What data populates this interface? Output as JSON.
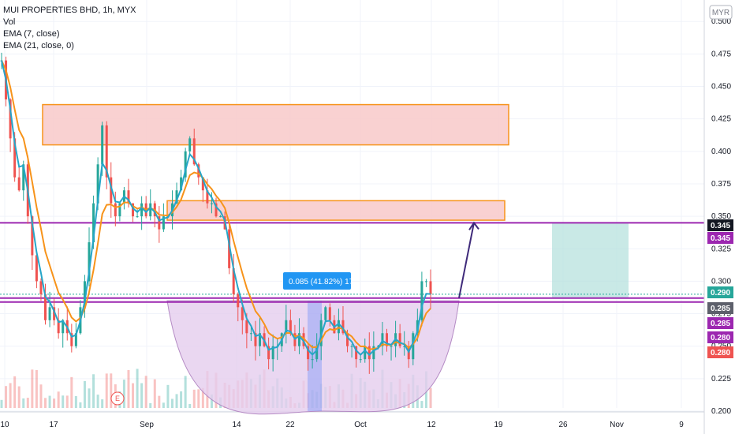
{
  "header": {
    "title": "MUI PROPERTIES BHD, 1h, MYX",
    "indicators": [
      "Vol",
      "EMA (7, close)",
      "EMA (21, close, 0)"
    ]
  },
  "currency_badge": "MYR",
  "measure_label": "0.085 (41.82%) 17",
  "colors": {
    "candle_up": "#26a69a",
    "candle_down": "#ef5350",
    "ema7": "#26a6c9",
    "ema21": "#f7931a",
    "resistance_zone": "#f8c9c9",
    "zone_border": "#f7931a",
    "purple_line": "#9c27b0",
    "cup_fill": "#e5cdee",
    "target_box": "#b2dfdb",
    "measure_box": "#2962ff"
  },
  "chart_data": {
    "type": "candlestick",
    "symbol": "MUI PROPERTIES BHD",
    "interval": "1h",
    "exchange": "MYX",
    "ylim": [
      0.2,
      0.505
    ],
    "y_ticks": [
      "0.500",
      "0.475",
      "0.450",
      "0.425",
      "0.400",
      "0.375",
      "0.350",
      "0.325",
      "0.300",
      "0.275",
      "0.250",
      "0.225",
      "0.200"
    ],
    "x_ticks": [
      "10",
      "17",
      "Sep",
      "14",
      "22",
      "Oct",
      "12",
      "19",
      "26",
      "Nov",
      "9"
    ],
    "price_levels": [
      {
        "label": "0.345",
        "value": 0.345,
        "color": "#131722",
        "text_color": "#ffffff"
      },
      {
        "label": "0.345",
        "value": 0.345,
        "color": "#9c27b0",
        "text_color": "#ffffff"
      },
      {
        "label": "0.290",
        "value": 0.29,
        "color": "#26a69a",
        "text_color": "#ffffff"
      },
      {
        "label": "0.285",
        "value": 0.285,
        "color": "#5d606b",
        "text_color": "#ffffff"
      },
      {
        "label": "0.285",
        "value": 0.285,
        "color": "#9c27b0",
        "text_color": "#ffffff"
      },
      {
        "label": "0.280",
        "value": 0.28,
        "color": "#9c27b0",
        "text_color": "#ffffff"
      },
      {
        "label": "0.280",
        "value": 0.28,
        "color": "#ef5350",
        "text_color": "#ffffff"
      }
    ],
    "zones": [
      {
        "name": "resistance-upper",
        "y_low": 0.405,
        "y_high": 0.436
      },
      {
        "name": "resistance-lower",
        "y_low": 0.347,
        "y_high": 0.362
      }
    ],
    "horizontal_lines": [
      0.345,
      0.287,
      0.284
    ],
    "close_series": [
      0.47,
      0.44,
      0.41,
      0.38,
      0.37,
      0.39,
      0.35,
      0.32,
      0.3,
      0.29,
      0.27,
      0.28,
      0.27,
      0.26,
      0.27,
      0.26,
      0.25,
      0.26,
      0.28,
      0.3,
      0.33,
      0.36,
      0.39,
      0.42,
      0.38,
      0.36,
      0.35,
      0.36,
      0.37,
      0.36,
      0.35,
      0.35,
      0.36,
      0.35,
      0.36,
      0.35,
      0.34,
      0.35,
      0.35,
      0.36,
      0.37,
      0.38,
      0.4,
      0.41,
      0.39,
      0.38,
      0.37,
      0.36,
      0.36,
      0.35,
      0.35,
      0.34,
      0.31,
      0.29,
      0.28,
      0.27,
      0.26,
      0.26,
      0.25,
      0.26,
      0.25,
      0.24,
      0.25,
      0.25,
      0.26,
      0.27,
      0.26,
      0.25,
      0.26,
      0.25,
      0.24,
      0.24,
      0.25,
      0.27,
      0.28,
      0.27,
      0.26,
      0.27,
      0.26,
      0.25,
      0.25,
      0.24,
      0.24,
      0.25,
      0.24,
      0.25,
      0.25,
      0.26,
      0.25,
      0.25,
      0.26,
      0.25,
      0.25,
      0.24,
      0.26,
      0.27,
      0.3,
      0.3,
      0.29
    ],
    "ema7_color": "#26a6c9",
    "ema21_color": "#f7931a"
  }
}
